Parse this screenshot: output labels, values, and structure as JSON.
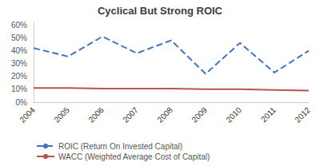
{
  "chart_data": {
    "type": "line",
    "title": "Cyclical But Strong ROIC",
    "categories": [
      "2004",
      "2005",
      "2006",
      "2007",
      "2008",
      "2009",
      "2010",
      "2011",
      "2012"
    ],
    "series": [
      {
        "name": "ROIC (Return On Invested Capital)",
        "color": "#4472C4",
        "line_style": "dashed",
        "values": [
          0.42,
          0.355,
          0.51,
          0.38,
          0.48,
          0.22,
          0.46,
          0.23,
          0.4
        ]
      },
      {
        "name": "WACC (Weighted Average Cost of Capital)",
        "color": "#C0504D",
        "line_style": "solid",
        "values": [
          0.11,
          0.11,
          0.105,
          0.105,
          0.105,
          0.1,
          0.1,
          0.095,
          0.09
        ]
      }
    ],
    "ylim": [
      0,
      0.62
    ],
    "yticks": [
      {
        "value": 0,
        "label": "0%"
      },
      {
        "value": 0.1,
        "label": "10%"
      },
      {
        "value": 0.2,
        "label": "20%"
      },
      {
        "value": 0.3,
        "label": "30%"
      },
      {
        "value": 0.4,
        "label": "40%"
      },
      {
        "value": 0.5,
        "label": "50%"
      },
      {
        "value": 0.6,
        "label": "60%"
      }
    ],
    "grid": false,
    "legend": "bottom"
  }
}
